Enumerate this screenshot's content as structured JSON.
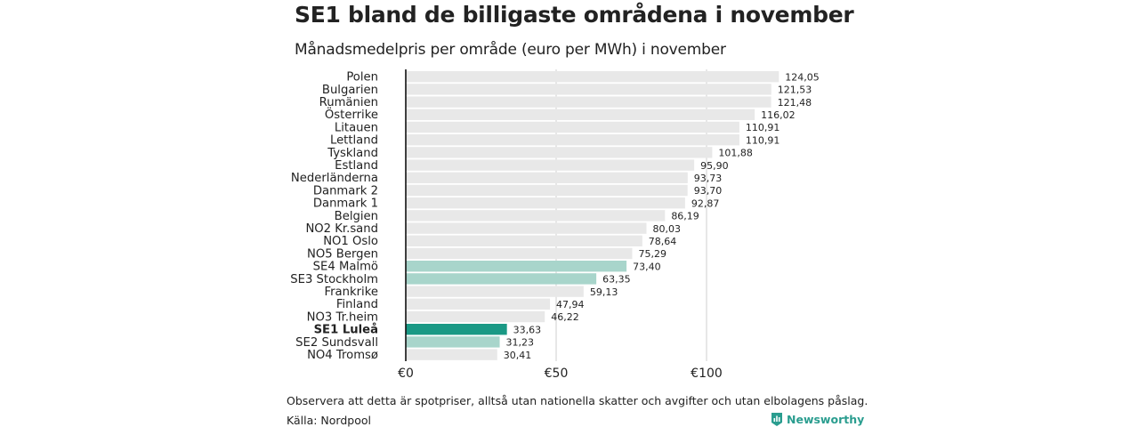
{
  "chart_data": {
    "type": "bar",
    "orientation": "horizontal",
    "title": "SE1 bland de billigaste områdena i november",
    "subtitle": "Månadsmedelpris per område (euro per MWh) i november",
    "categories": [
      "Polen",
      "Bulgarien",
      "Rumänien",
      "Österrike",
      "Litauen",
      "Lettland",
      "Tyskland",
      "Estland",
      "Nederländerna",
      "Danmark  2",
      "Danmark  1",
      "Belgien",
      "NO2 Kr.sand",
      "NO1 Oslo",
      "NO5 Bergen",
      "SE4  Malmö",
      "SE3  Stockholm",
      "Frankrike",
      "Finland",
      "NO3 Tr.heim",
      "SE1 Luleå",
      "SE2  Sundsvall",
      "NO4 Tromsø"
    ],
    "values": [
      124.05,
      121.53,
      121.48,
      116.02,
      110.91,
      110.91,
      101.88,
      95.9,
      93.73,
      93.7,
      92.87,
      86.19,
      80.03,
      78.64,
      75.29,
      73.4,
      63.35,
      59.13,
      47.94,
      46.22,
      33.63,
      31.23,
      30.41
    ],
    "value_labels": [
      "124,05",
      "121,53",
      "121,48",
      "116,02",
      "110,91",
      "110,91",
      "101,88",
      "95,90",
      "93,73",
      "93,70",
      "92,87",
      "86,19",
      "80,03",
      "78,64",
      "75,29",
      "73,40",
      "63,35",
      "59,13",
      "47,94",
      "46,22",
      "33,63",
      "31,23",
      "30,41"
    ],
    "highlight": [
      "none",
      "none",
      "none",
      "none",
      "none",
      "none",
      "none",
      "none",
      "none",
      "none",
      "none",
      "none",
      "none",
      "none",
      "none",
      "light",
      "light",
      "none",
      "none",
      "none",
      "strong",
      "light",
      "none"
    ],
    "emphasized_category": "SE1 Luleå",
    "xlim": [
      0,
      130
    ],
    "xticks": [
      0,
      50,
      100
    ],
    "xtick_labels": [
      "€0",
      "€50",
      "€100"
    ],
    "grid": true,
    "colors": {
      "default": "#e8e8e8",
      "light": "#a8d5cb",
      "strong": "#1a9985",
      "axis": "#111111",
      "grid": "#cfcfcf"
    }
  },
  "footnote": "Observera att detta är spotpriser, alltså utan nationella skatter och avgifter och utan elbolagens påslag.",
  "source": "Källa: Nordpool",
  "brand": {
    "name": "Newsworthy",
    "icon": "newsworthy-logo-icon",
    "color": "#2a9d8f"
  }
}
